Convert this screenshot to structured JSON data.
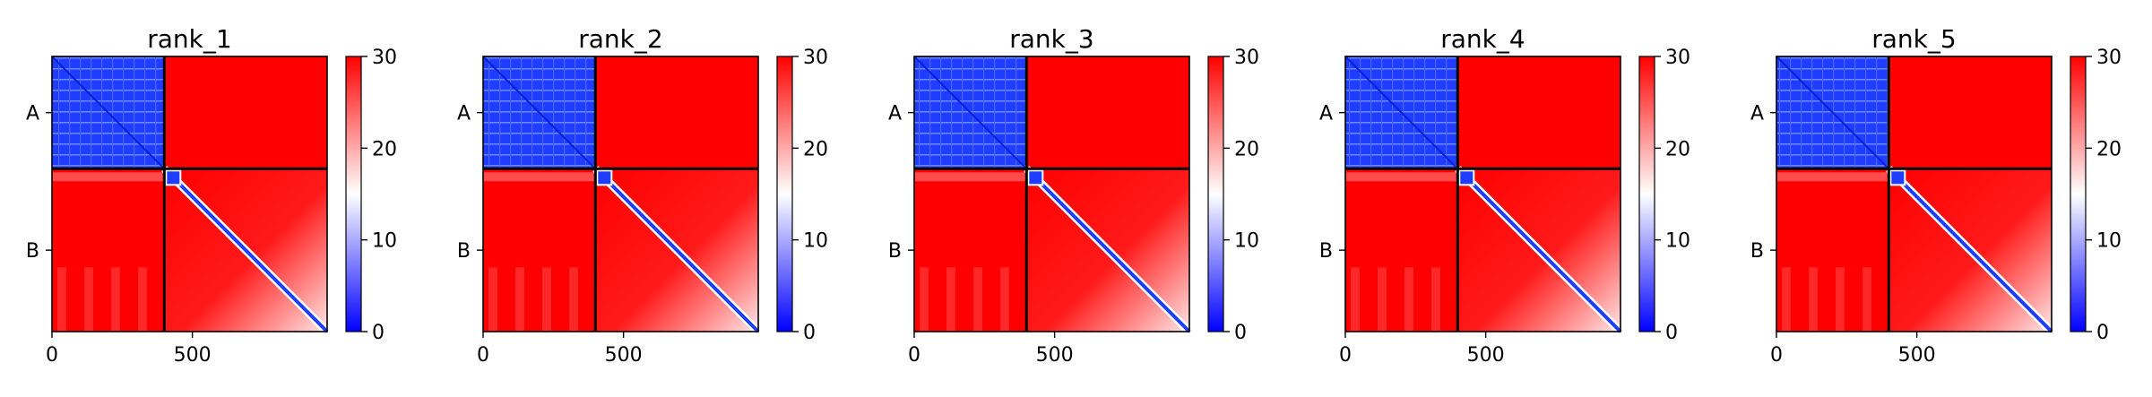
{
  "chart_data": [
    {
      "type": "heatmap",
      "title": "rank_1",
      "xlabel": "",
      "ylabel": "",
      "xlim": [
        0,
        980
      ],
      "x_ticks": [
        0,
        500
      ],
      "y_ticks": [
        "A",
        "B"
      ],
      "chain_boundary": 400,
      "block_size_range": [
        0,
        980
      ],
      "colorbar": {
        "range": [
          0,
          30
        ],
        "ticks": [
          0,
          10,
          20,
          30
        ],
        "colormap": "bwr",
        "low_color": "#0000ff",
        "mid_color": "#ffffff",
        "high_color": "#ff0000"
      },
      "block_values": {
        "A-A": 5,
        "A-B": 30,
        "B-A": 28,
        "B-B_diagonal": 0,
        "B-B_offdiagonal": 30
      }
    },
    {
      "type": "heatmap",
      "title": "rank_2",
      "xlabel": "",
      "ylabel": "",
      "xlim": [
        0,
        980
      ],
      "x_ticks": [
        0,
        500
      ],
      "y_ticks": [
        "A",
        "B"
      ],
      "chain_boundary": 400,
      "colorbar": {
        "range": [
          0,
          30
        ],
        "ticks": [
          0,
          10,
          20,
          30
        ],
        "colormap": "bwr",
        "low_color": "#0000ff",
        "mid_color": "#ffffff",
        "high_color": "#ff0000"
      },
      "block_values": {
        "A-A": 5,
        "A-B": 30,
        "B-A": 28,
        "B-B_diagonal": 0,
        "B-B_offdiagonal": 30
      }
    },
    {
      "type": "heatmap",
      "title": "rank_3",
      "xlabel": "",
      "ylabel": "",
      "xlim": [
        0,
        980
      ],
      "x_ticks": [
        0,
        500
      ],
      "y_ticks": [
        "A",
        "B"
      ],
      "chain_boundary": 400,
      "colorbar": {
        "range": [
          0,
          30
        ],
        "ticks": [
          0,
          10,
          20,
          30
        ],
        "colormap": "bwr",
        "low_color": "#0000ff",
        "mid_color": "#ffffff",
        "high_color": "#ff0000"
      },
      "block_values": {
        "A-A": 5,
        "A-B": 30,
        "B-A": 28,
        "B-B_diagonal": 0,
        "B-B_offdiagonal": 30
      }
    },
    {
      "type": "heatmap",
      "title": "rank_4",
      "xlabel": "",
      "ylabel": "",
      "xlim": [
        0,
        980
      ],
      "x_ticks": [
        0,
        500
      ],
      "y_ticks": [
        "A",
        "B"
      ],
      "chain_boundary": 400,
      "colorbar": {
        "range": [
          0,
          30
        ],
        "ticks": [
          0,
          10,
          20,
          30
        ],
        "colormap": "bwr",
        "low_color": "#0000ff",
        "mid_color": "#ffffff",
        "high_color": "#ff0000"
      },
      "block_values": {
        "A-A": 5,
        "A-B": 30,
        "B-A": 28,
        "B-B_diagonal": 0,
        "B-B_offdiagonal": 30
      }
    },
    {
      "type": "heatmap",
      "title": "rank_5",
      "xlabel": "",
      "ylabel": "",
      "xlim": [
        0,
        980
      ],
      "x_ticks": [
        0,
        500
      ],
      "y_ticks": [
        "A",
        "B"
      ],
      "chain_boundary": 400,
      "colorbar": {
        "range": [
          0,
          30
        ],
        "ticks": [
          0,
          10,
          20,
          30
        ],
        "colormap": "bwr",
        "low_color": "#0000ff",
        "mid_color": "#ffffff",
        "high_color": "#ff0000"
      },
      "block_values": {
        "A-A": 5,
        "A-B": 30,
        "B-A": 28,
        "B-B_diagonal": 0,
        "B-B_offdiagonal": 30
      }
    }
  ]
}
